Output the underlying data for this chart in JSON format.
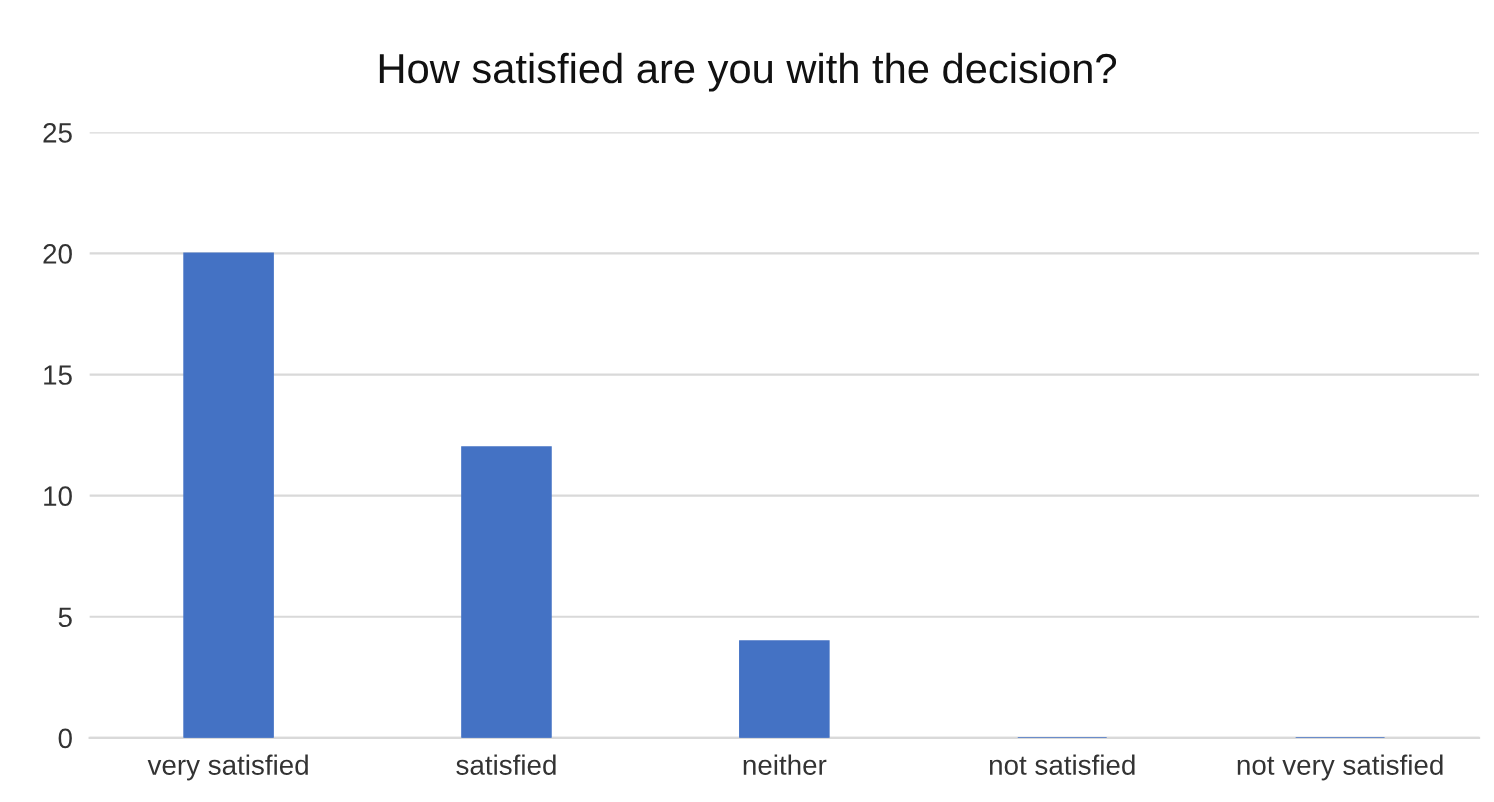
{
  "chart_data": {
    "type": "bar",
    "title": "How satisfied are you with the decision?",
    "categories": [
      "very satisfied",
      "satisfied",
      "neither",
      "not satisfied",
      "not very satisfied"
    ],
    "values": [
      20,
      12,
      4,
      0,
      0
    ],
    "color": "#4472c4",
    "ylim": [
      0,
      25
    ],
    "yticks": [
      0,
      5,
      10,
      15,
      20,
      25
    ],
    "grid": "y"
  }
}
